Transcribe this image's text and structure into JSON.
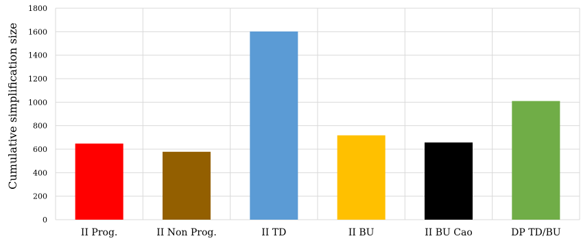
{
  "chart_data": {
    "type": "bar",
    "title": "",
    "xlabel": "",
    "ylabel": "Cumulative simplification size",
    "ylim": [
      0,
      1800
    ],
    "yticks": [
      0,
      200,
      400,
      600,
      800,
      1000,
      1200,
      1400,
      1600,
      1800
    ],
    "grid": true,
    "legend": "none",
    "categories": [
      "II Prog.",
      "II Non Prog.",
      "II TD",
      "II BU",
      "II BU Cao",
      "DP TD/BU"
    ],
    "values": [
      648,
      578,
      1602,
      718,
      657,
      1010
    ],
    "colors": [
      "#ff0000",
      "#935f00",
      "#5b9bd5",
      "#ffc000",
      "#000000",
      "#70ad47"
    ]
  }
}
